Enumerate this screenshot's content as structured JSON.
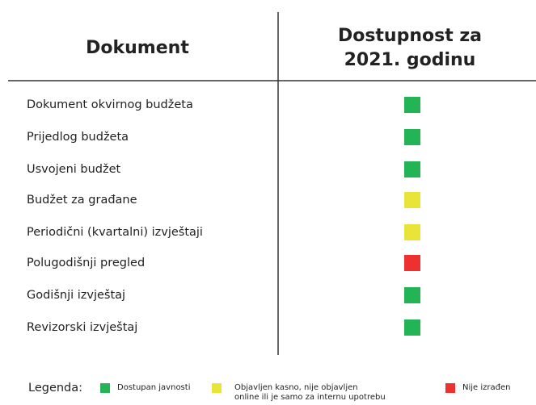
{
  "table": {
    "columns": [
      {
        "lines": [
          "Dokument"
        ]
      },
      {
        "lines": [
          "Dostupnost za",
          "2021. godinu"
        ]
      }
    ],
    "rows": [
      {
        "label": "Dokument okvirnog budžeta",
        "color": "#22b455"
      },
      {
        "label": "Prijedlog budžeta",
        "color": "#22b455"
      },
      {
        "label": "Usvojeni budžet",
        "color": "#22b455"
      },
      {
        "label": "Budžet za građane",
        "color": "#e8e43a"
      },
      {
        "label": "Periodični (kvartalni) izvještaji",
        "color": "#e8e43a"
      },
      {
        "label": "Polugodišnji pregled",
        "color": "#ee3030"
      },
      {
        "label": "Godišnji izvještaj",
        "color": "#22b455"
      },
      {
        "label": "Revizorski izvještaj",
        "color": "#22b455"
      }
    ]
  },
  "legend": {
    "title": "Legenda:",
    "items": [
      {
        "lines": [
          "Dostupan javnosti"
        ],
        "color": "#22b455"
      },
      {
        "lines": [
          "Objavljen kasno, nije objavljen",
          "online ili je samo za internu upotrebu"
        ],
        "color": "#e8e43a"
      },
      {
        "lines": [
          "Nije izrađen"
        ],
        "color": "#ee3030"
      }
    ]
  }
}
